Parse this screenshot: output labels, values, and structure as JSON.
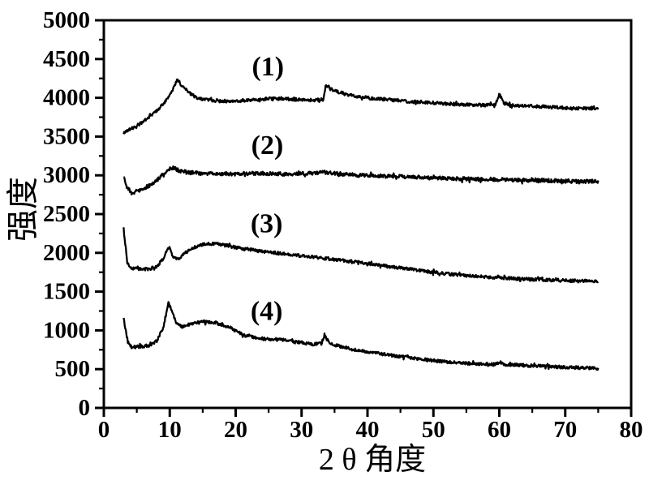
{
  "page": {
    "background": "#ffffff",
    "foreground": "#000000"
  },
  "chart_data": {
    "type": "line",
    "title": "",
    "xlabel": "2 θ 角度",
    "ylabel": "强度",
    "xlim": [
      0,
      80
    ],
    "ylim": [
      0,
      5000
    ],
    "grid": false,
    "legend": "none",
    "line_color": "#000000",
    "x_tick_labels": [
      "0",
      "10",
      "20",
      "30",
      "40",
      "50",
      "60",
      "70",
      "80"
    ],
    "x_major_tick_step": 10,
    "x_minor_tick_step": 5,
    "y_tick_labels": [
      "0",
      "500",
      "1000",
      "1500",
      "2000",
      "2500",
      "3000",
      "3500",
      "4000",
      "4500",
      "5000"
    ],
    "y_major_tick_step": 500,
    "y_minor_tick_step": 250,
    "series": [
      {
        "name": "curve-1",
        "annotation": "(1)",
        "annotation_pos": [
          24.9,
          4400
        ],
        "noise": 20,
        "points": [
          [
            3,
            3550
          ],
          [
            4,
            3595
          ],
          [
            5,
            3640
          ],
          [
            6,
            3695
          ],
          [
            7,
            3760
          ],
          [
            8,
            3835
          ],
          [
            9,
            3915
          ],
          [
            10,
            4040
          ],
          [
            10.7,
            4150
          ],
          [
            11.2,
            4240
          ],
          [
            11.8,
            4160
          ],
          [
            12.6,
            4100
          ],
          [
            13.5,
            4030
          ],
          [
            14.5,
            3990
          ],
          [
            15.5,
            3975
          ],
          [
            17,
            3960
          ],
          [
            19,
            3955
          ],
          [
            21,
            3965
          ],
          [
            23,
            3975
          ],
          [
            25,
            3990
          ],
          [
            27,
            3990
          ],
          [
            29,
            3980
          ],
          [
            31,
            3970
          ],
          [
            33.3,
            3975
          ],
          [
            33.7,
            4150
          ],
          [
            34.4,
            4110
          ],
          [
            35.5,
            4075
          ],
          [
            37,
            4040
          ],
          [
            38.5,
            4020
          ],
          [
            40,
            4000
          ],
          [
            42,
            3985
          ],
          [
            44,
            3970
          ],
          [
            46,
            3955
          ],
          [
            48,
            3945
          ],
          [
            50,
            3935
          ],
          [
            52,
            3925
          ],
          [
            54,
            3915
          ],
          [
            56,
            3910
          ],
          [
            58,
            3905
          ],
          [
            59.4,
            3915
          ],
          [
            60,
            4045
          ],
          [
            60.7,
            3930
          ],
          [
            62,
            3905
          ],
          [
            64,
            3895
          ],
          [
            66,
            3890
          ],
          [
            68,
            3880
          ],
          [
            70,
            3870
          ],
          [
            72,
            3865
          ],
          [
            75,
            3855
          ]
        ]
      },
      {
        "name": "curve-2",
        "annotation": "(2)",
        "annotation_pos": [
          24.8,
          3385
        ],
        "noise": 24,
        "points": [
          [
            3,
            3000
          ],
          [
            3.4,
            2865
          ],
          [
            4.2,
            2765
          ],
          [
            5,
            2795
          ],
          [
            6,
            2830
          ],
          [
            7,
            2875
          ],
          [
            8,
            2935
          ],
          [
            9,
            3010
          ],
          [
            9.8,
            3080
          ],
          [
            10.5,
            3100
          ],
          [
            11.3,
            3065
          ],
          [
            12.5,
            3040
          ],
          [
            14,
            3030
          ],
          [
            16,
            3025
          ],
          [
            18,
            3020
          ],
          [
            20,
            3020
          ],
          [
            22,
            3025
          ],
          [
            24,
            3025
          ],
          [
            26,
            3020
          ],
          [
            28,
            3015
          ],
          [
            30,
            3020
          ],
          [
            32,
            3030
          ],
          [
            33.5,
            3040
          ],
          [
            35,
            3025
          ],
          [
            37,
            3010
          ],
          [
            40,
            2995
          ],
          [
            43,
            2990
          ],
          [
            46,
            2980
          ],
          [
            50,
            2965
          ],
          [
            54,
            2955
          ],
          [
            58,
            2950
          ],
          [
            62,
            2940
          ],
          [
            66,
            2935
          ],
          [
            70,
            2925
          ],
          [
            75,
            2920
          ]
        ]
      },
      {
        "name": "curve-3",
        "annotation": "(3)",
        "annotation_pos": [
          24.7,
          2375
        ],
        "noise": 20,
        "points": [
          [
            3,
            2310
          ],
          [
            3.2,
            2160
          ],
          [
            3.6,
            1860
          ],
          [
            4.2,
            1800
          ],
          [
            5,
            1795
          ],
          [
            6,
            1790
          ],
          [
            7,
            1795
          ],
          [
            8,
            1820
          ],
          [
            9,
            1925
          ],
          [
            9.9,
            2080
          ],
          [
            10.5,
            1955
          ],
          [
            11.2,
            1915
          ],
          [
            12.3,
            1995
          ],
          [
            13.5,
            2060
          ],
          [
            14.8,
            2105
          ],
          [
            16,
            2120
          ],
          [
            17.3,
            2110
          ],
          [
            18.6,
            2095
          ],
          [
            20,
            2070
          ],
          [
            22,
            2045
          ],
          [
            24,
            2020
          ],
          [
            26,
            2000
          ],
          [
            28,
            1980
          ],
          [
            30,
            1960
          ],
          [
            32,
            1945
          ],
          [
            34,
            1925
          ],
          [
            36,
            1905
          ],
          [
            38,
            1885
          ],
          [
            40,
            1865
          ],
          [
            42,
            1840
          ],
          [
            44,
            1815
          ],
          [
            46,
            1795
          ],
          [
            48,
            1770
          ],
          [
            50,
            1750
          ],
          [
            52,
            1730
          ],
          [
            54,
            1715
          ],
          [
            56,
            1700
          ],
          [
            58,
            1690
          ],
          [
            60,
            1680
          ],
          [
            63,
            1665
          ],
          [
            66,
            1655
          ],
          [
            69,
            1645
          ],
          [
            72,
            1638
          ],
          [
            75,
            1630
          ]
        ]
      },
      {
        "name": "curve-4",
        "annotation": "(4)",
        "annotation_pos": [
          24.7,
          1245
        ],
        "noise": 20,
        "points": [
          [
            3,
            1165
          ],
          [
            3.2,
            1060
          ],
          [
            3.6,
            860
          ],
          [
            4.2,
            780
          ],
          [
            5,
            790
          ],
          [
            6,
            795
          ],
          [
            7,
            810
          ],
          [
            8,
            860
          ],
          [
            9,
            1030
          ],
          [
            9.8,
            1350
          ],
          [
            10.4,
            1240
          ],
          [
            11,
            1080
          ],
          [
            11.8,
            1050
          ],
          [
            12.8,
            1075
          ],
          [
            14,
            1100
          ],
          [
            15.3,
            1110
          ],
          [
            16.6,
            1100
          ],
          [
            18,
            1075
          ],
          [
            19.2,
            1035
          ],
          [
            20.3,
            975
          ],
          [
            21.5,
            935
          ],
          [
            23,
            905
          ],
          [
            24.5,
            890
          ],
          [
            26,
            885
          ],
          [
            28,
            870
          ],
          [
            30,
            845
          ],
          [
            31.8,
            820
          ],
          [
            33,
            830
          ],
          [
            33.5,
            930
          ],
          [
            34.2,
            840
          ],
          [
            35.5,
            800
          ],
          [
            37,
            770
          ],
          [
            38.5,
            745
          ],
          [
            40,
            725
          ],
          [
            42,
            700
          ],
          [
            44,
            675
          ],
          [
            46,
            655
          ],
          [
            48,
            630
          ],
          [
            50,
            610
          ],
          [
            52,
            595
          ],
          [
            54,
            580
          ],
          [
            56,
            570
          ],
          [
            58,
            562
          ],
          [
            59.4,
            560
          ],
          [
            60,
            595
          ],
          [
            60.7,
            560
          ],
          [
            62,
            555
          ],
          [
            64,
            548
          ],
          [
            66,
            540
          ],
          [
            68,
            532
          ],
          [
            70,
            525
          ],
          [
            72.5,
            517
          ],
          [
            75,
            510
          ]
        ]
      }
    ]
  }
}
